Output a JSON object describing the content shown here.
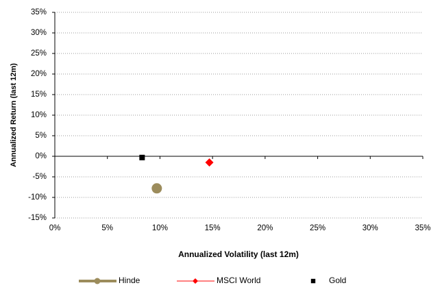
{
  "chart_data": {
    "type": "scatter",
    "x_label": "Annualized Volatility (last 12m)",
    "y_label": "Annualized Return (last 12m)",
    "xlim": [
      0,
      35
    ],
    "xticks": [
      {
        "value": 0,
        "label": "0%"
      },
      {
        "value": 5,
        "label": "5%"
      },
      {
        "value": 10,
        "label": "10%"
      },
      {
        "value": 15,
        "label": "15%"
      },
      {
        "value": 20,
        "label": "20%"
      },
      {
        "value": 25,
        "label": "25%"
      },
      {
        "value": 30,
        "label": "30%"
      },
      {
        "value": 35,
        "label": "35%"
      }
    ],
    "ylim": [
      -15,
      35
    ],
    "yticks": [
      {
        "value": -15,
        "label": "-15%"
      },
      {
        "value": -10,
        "label": "-10%"
      },
      {
        "value": -5,
        "label": "-5%"
      },
      {
        "value": 0,
        "label": "0%"
      },
      {
        "value": 5,
        "label": "5%"
      },
      {
        "value": 10,
        "label": "10%"
      },
      {
        "value": 15,
        "label": "15%"
      },
      {
        "value": 20,
        "label": "20%"
      },
      {
        "value": 25,
        "label": "25%"
      },
      {
        "value": 30,
        "label": "30%"
      },
      {
        "value": 35,
        "label": "35%"
      }
    ],
    "grid": true,
    "legend_position": "bottom",
    "series": [
      {
        "name": "Hinde",
        "color": "#9c8c5c",
        "marker": "circle",
        "legend_line": true,
        "x": [
          9.7
        ],
        "values": [
          -7.8
        ]
      },
      {
        "name": "MSCI World",
        "color": "#ff0000",
        "marker": "diamond",
        "legend_line": true,
        "x": [
          14.7
        ],
        "values": [
          -1.5
        ]
      },
      {
        "name": "Gold",
        "color": "#000000",
        "marker": "square",
        "legend_line": false,
        "x": [
          8.3
        ],
        "values": [
          -0.3
        ]
      }
    ]
  }
}
